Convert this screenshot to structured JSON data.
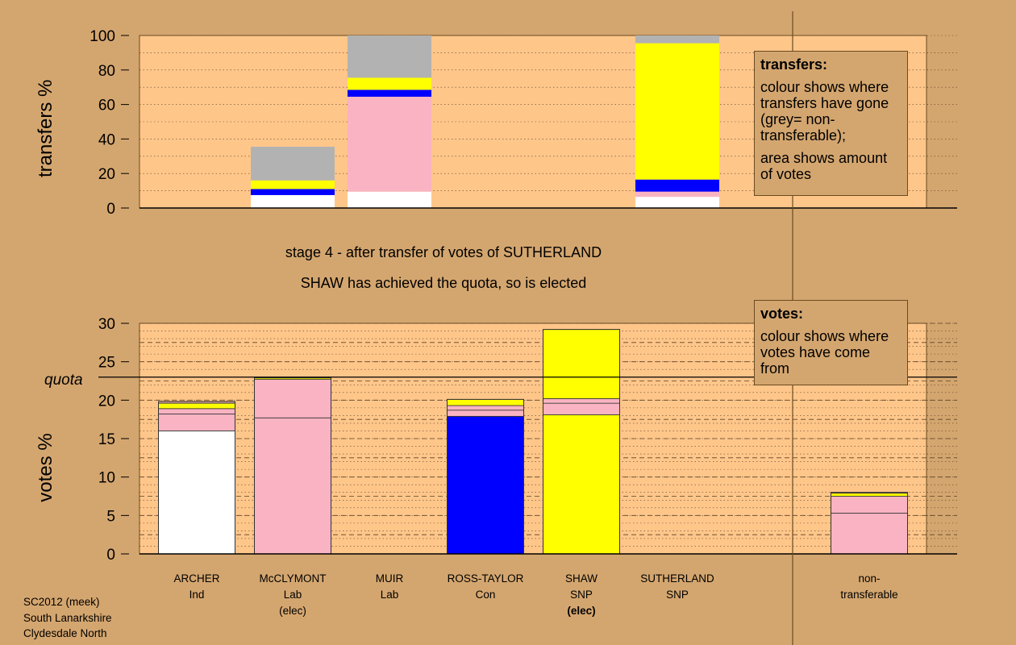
{
  "chart_data": [
    {
      "type": "bar",
      "stacked": true,
      "panel": "transfers",
      "ylabel": "transfers %",
      "ylim": [
        0,
        100
      ],
      "yticks": [
        "0",
        "20",
        "40",
        "60",
        "80",
        "100"
      ],
      "grid": "dotted",
      "categories": [
        "ARCHER",
        "McCLYMONT",
        "MUIR",
        "ROSS-TAYLOR",
        "SHAW",
        "SUTHERLAND",
        "non-transferable"
      ],
      "stack_colors": [
        "#ffffff",
        "#f9b3c2",
        "#0000ff",
        "#ffff00",
        "#b2b2b2"
      ],
      "stacks": [
        [],
        [
          {
            "color": "#ffffff",
            "value": 7.5
          },
          {
            "color": "#0000ff",
            "value": 3.5
          },
          {
            "color": "#ffff00",
            "value": 5
          },
          {
            "color": "#b2b2b2",
            "value": 19.5
          }
        ],
        [
          {
            "color": "#ffffff",
            "value": 9.5
          },
          {
            "color": "#f9b3c2",
            "value": 55
          },
          {
            "color": "#0000ff",
            "value": 4
          },
          {
            "color": "#ffff00",
            "value": 7
          },
          {
            "color": "#b2b2b2",
            "value": 24.5
          }
        ],
        [],
        [],
        [
          {
            "color": "#ffffff",
            "value": 6.5
          },
          {
            "color": "#f9b3c2",
            "value": 3
          },
          {
            "color": "#0000ff",
            "value": 7
          },
          {
            "color": "#ffff00",
            "value": 79
          },
          {
            "color": "#b2b2b2",
            "value": 4.5
          }
        ],
        []
      ]
    },
    {
      "type": "bar",
      "stacked": true,
      "panel": "votes",
      "ylabel": "votes %",
      "ylim": [
        0,
        30
      ],
      "yticks": [
        "0",
        "5",
        "10",
        "15",
        "20",
        "25",
        "30"
      ],
      "grid": "dashed",
      "quota": 23,
      "categories": [
        "ARCHER",
        "McCLYMONT",
        "MUIR",
        "ROSS-TAYLOR",
        "SHAW",
        "SUTHERLAND",
        "non-transferable"
      ],
      "stacks": [
        [
          {
            "color": "#ffffff",
            "value": 16
          },
          {
            "color": "#f9b3c2",
            "value": 2.2
          },
          {
            "color": "#f9b3c2",
            "value": 0.7
          },
          {
            "color": "#ffff00",
            "value": 0.7
          },
          {
            "color": "#f9b3c2",
            "value": 0.2
          }
        ],
        [
          {
            "color": "#f9b3c2",
            "value": 17.7
          },
          {
            "color": "#f9b3c2",
            "value": 5
          },
          {
            "color": "#ffff00",
            "value": 0.2
          }
        ],
        [],
        [
          {
            "color": "#0000ff",
            "value": 17.9
          },
          {
            "color": "#f9b3c2",
            "value": 0.8
          },
          {
            "color": "#f9b3c2",
            "value": 0.6
          },
          {
            "color": "#ffff00",
            "value": 0.8
          }
        ],
        [
          {
            "color": "#ffff00",
            "value": 18.1
          },
          {
            "color": "#f9b3c2",
            "value": 1.5
          },
          {
            "color": "#f9b3c2",
            "value": 0.6
          },
          {
            "color": "#ffff00",
            "value": 9
          }
        ],
        [],
        [
          {
            "color": "#f9b3c2",
            "value": 5.3
          },
          {
            "color": "#f9b3c2",
            "value": 2.2
          },
          {
            "color": "#ffff00",
            "value": 0.4
          },
          {
            "color": "#f9b3c2",
            "value": 0.1
          }
        ]
      ]
    }
  ],
  "labels": {
    "transfers_axis": "transfers %",
    "votes_axis": "votes %",
    "quota": "quota",
    "stage_line_1": "stage 4 - after transfer of votes of SUTHERLAND",
    "stage_line_2": "SHAW has achieved the quota, so is elected"
  },
  "legend_transfers": {
    "title": "transfers:",
    "p1": "colour shows where transfers have gone (grey= non-transferable);",
    "p2": "area shows amount of votes"
  },
  "legend_votes": {
    "title": "votes:",
    "p1": "colour shows where votes have come from"
  },
  "candidates": [
    {
      "name": "ARCHER",
      "party": "Ind",
      "note": ""
    },
    {
      "name": "McCLYMONT",
      "party": "Lab",
      "note": "(elec)"
    },
    {
      "name": "MUIR",
      "party": "Lab",
      "note": ""
    },
    {
      "name": "ROSS-TAYLOR",
      "party": "Con",
      "note": ""
    },
    {
      "name": "SHAW",
      "party": "SNP",
      "note": "(elec)"
    },
    {
      "name": "SUTHERLAND",
      "party": "SNP",
      "note": ""
    },
    {
      "name": "non-",
      "party": "transferable",
      "note": ""
    }
  ],
  "footer": {
    "line1": "SC2012 (meek)",
    "line2": "South Lanarkshire",
    "line3": "Clydesdale North"
  },
  "colors": {
    "background": "#d4a66f",
    "plot_bg": "#ffc68a",
    "white": "#ffffff",
    "pink": "#f9b3c2",
    "blue": "#0000ff",
    "yellow": "#ffff00",
    "grey": "#b2b2b2"
  }
}
